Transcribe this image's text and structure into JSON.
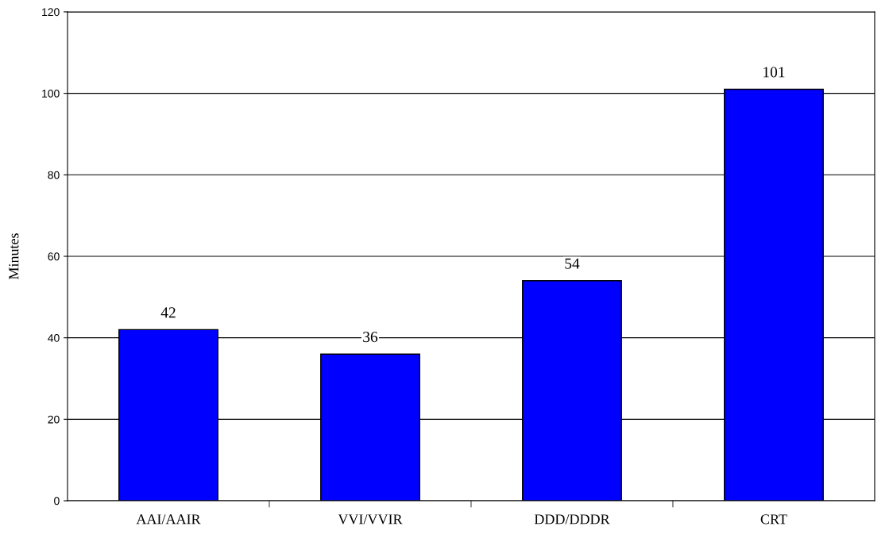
{
  "chart_data": {
    "type": "bar",
    "ylabel": "Minutes",
    "categories": [
      "AAI/AAIR",
      "VVI/VVIR",
      "DDD/DDDR",
      "CRT"
    ],
    "values": [
      42,
      36,
      54,
      101
    ],
    "color": "#0000ff",
    "ylim": [
      0,
      120
    ],
    "yticks": [
      0,
      20,
      40,
      60,
      80,
      100,
      120
    ],
    "grid": "y",
    "data_labels": true
  }
}
